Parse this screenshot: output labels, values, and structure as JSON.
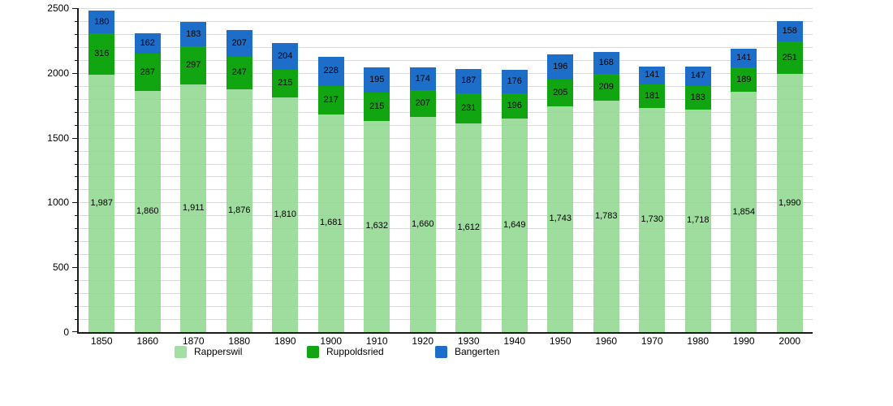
{
  "chart_data": {
    "type": "bar",
    "stacked": true,
    "title": "",
    "xlabel": "",
    "ylabel": "",
    "categories": [
      "1850",
      "1860",
      "1870",
      "1880",
      "1890",
      "1900",
      "1910",
      "1920",
      "1930",
      "1940",
      "1950",
      "1960",
      "1970",
      "1980",
      "1990",
      "2000"
    ],
    "series": [
      {
        "name": "Rapperswil",
        "color": "rgba(142,215,142,0.85)",
        "legend_color": "#a2dfa2",
        "label_format": "thousands",
        "values": [
          1987,
          1860,
          1911,
          1876,
          1810,
          1681,
          1632,
          1660,
          1612,
          1649,
          1743,
          1783,
          1730,
          1718,
          1854,
          1990
        ]
      },
      {
        "name": "Ruppoldsried",
        "color": "#12a512",
        "legend_color": "#12a512",
        "label_format": "plain",
        "values": [
          316,
          287,
          297,
          247,
          215,
          217,
          215,
          207,
          231,
          196,
          205,
          209,
          181,
          183,
          189,
          251
        ]
      },
      {
        "name": "Bangerten",
        "color": "#1c6ec8",
        "legend_color": "#1c6ec8",
        "label_format": "plain",
        "values": [
          180,
          162,
          183,
          207,
          204,
          228,
          195,
          174,
          187,
          176,
          196,
          168,
          141,
          147,
          141,
          158
        ]
      }
    ],
    "ylim": [
      0,
      2500
    ],
    "ytick_major": 500,
    "ytick_minor": 100,
    "y_tick_labels": [
      "0",
      "500",
      "1000",
      "1500",
      "2000",
      "2500"
    ],
    "grid": "horizontal-minor",
    "gridline_color": "#dadada",
    "axis_color": "#1a1a1a",
    "value_labels": "inside-segments-centered",
    "legend_position": "bottom",
    "legend": [
      "Rapperswil",
      "Ruppoldsried",
      "Bangerten"
    ]
  }
}
